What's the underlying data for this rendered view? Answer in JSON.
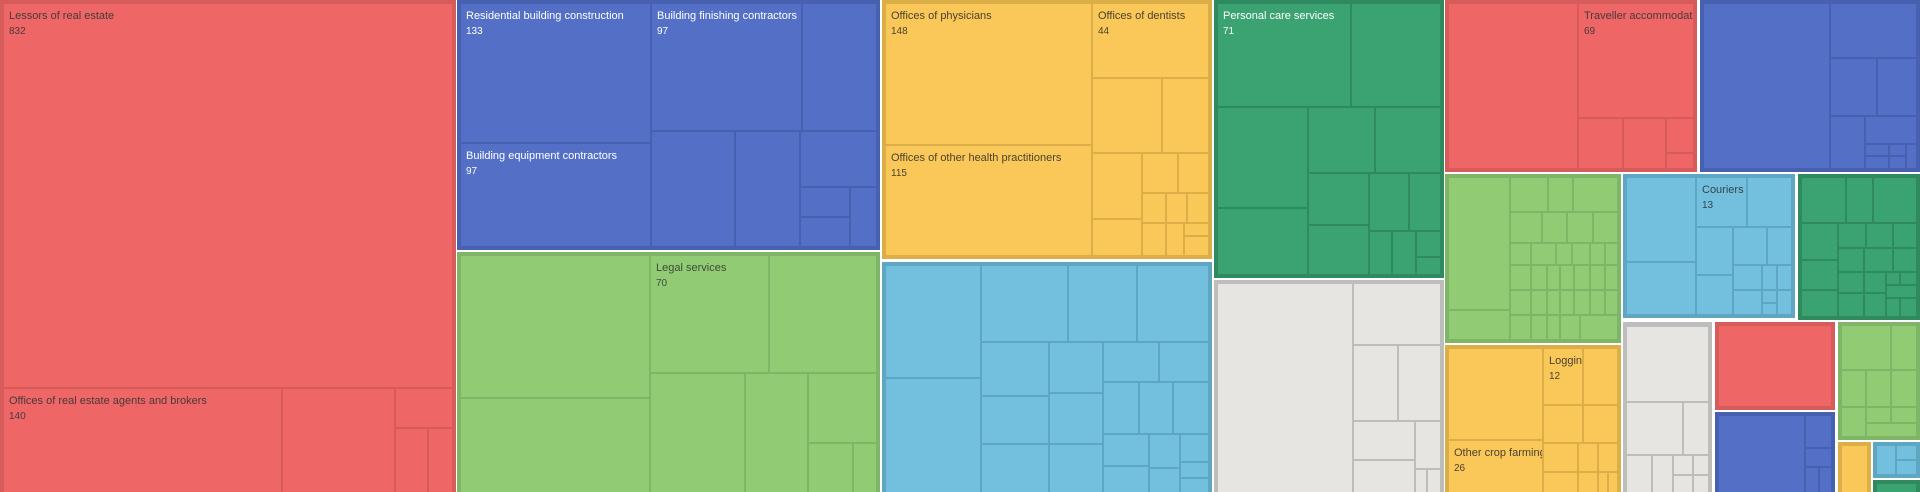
{
  "chart_data": {
    "type": "treemap",
    "title": "",
    "palette": {
      "red": {
        "fill": "#ee6666",
        "border": "#d65c5c",
        "text": "#4a3a3a"
      },
      "blue": {
        "fill": "#5470c6",
        "border": "#4760b0",
        "text": "#ffffff"
      },
      "lgreen": {
        "fill": "#91cc75",
        "border": "#7fb566",
        "text": "#3f4a3a"
      },
      "yellow": {
        "fill": "#fac858",
        "border": "#dcae48",
        "text": "#4a4232"
      },
      "cyan": {
        "fill": "#73c0de",
        "border": "#5fa6c2",
        "text": "#34444a"
      },
      "dgreen": {
        "fill": "#3ba272",
        "border": "#2f8a5f",
        "text": "#ffffff"
      },
      "gray": {
        "fill": "#e6e5e2",
        "border": "#bdbdbb",
        "text": "#4a4a4a"
      }
    },
    "nodes": [
      {
        "label": "Lessors of real estate",
        "value": "832",
        "group": "red"
      },
      {
        "label": "Offices of real estate agents and brokers",
        "value": "140",
        "group": "red"
      },
      {
        "label": "Residential building construction",
        "value": "133",
        "group": "blue"
      },
      {
        "label": "Building finishing contractors",
        "value": "97",
        "group": "blue"
      },
      {
        "label": "Building equipment contractors",
        "value": "97",
        "group": "blue"
      },
      {
        "label": "Legal services",
        "value": "70",
        "group": "lgreen"
      },
      {
        "label": "Offices of physicians",
        "value": "148",
        "group": "yellow"
      },
      {
        "label": "Offices of dentists",
        "value": "44",
        "group": "yellow"
      },
      {
        "label": "Offices of other health practitioners",
        "value": "115",
        "group": "yellow"
      },
      {
        "label": "Personal care services",
        "value": "71",
        "group": "dgreen"
      },
      {
        "label": "Traveller accommodation",
        "value": "69",
        "group": "red"
      },
      {
        "label": "Couriers",
        "value": "13",
        "group": "cyan"
      },
      {
        "label": "Logging",
        "value": "12",
        "group": "yellow"
      },
      {
        "label": "Other crop farming",
        "value": "26",
        "group": "yellow"
      }
    ]
  }
}
